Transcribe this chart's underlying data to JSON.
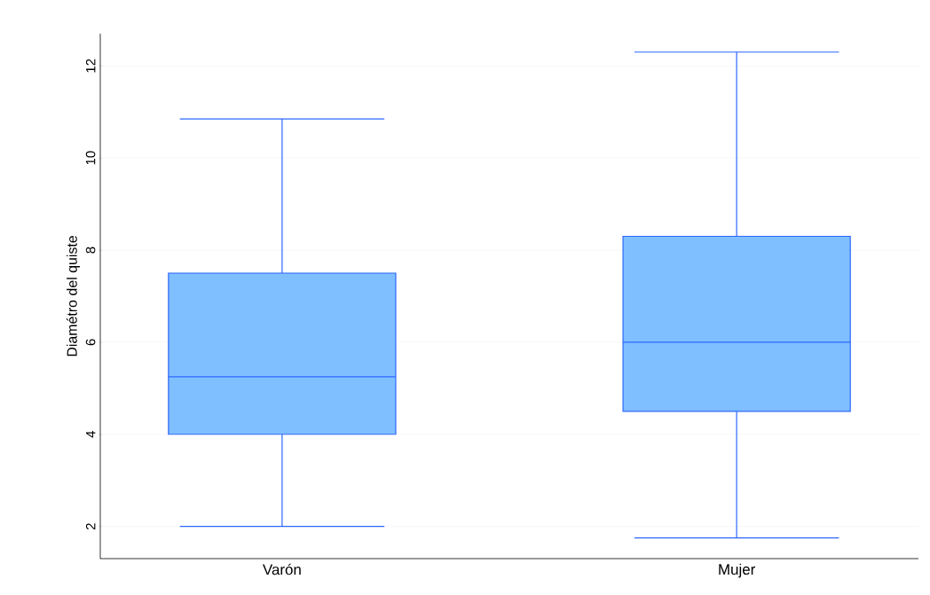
{
  "chart_data": {
    "type": "box",
    "ylabel": "Diamétro del quiste",
    "categories": [
      "Varón",
      "Mujer"
    ],
    "color": "#80bfff",
    "boxes": [
      {
        "low": 2.0,
        "q1": 4.0,
        "median": 5.25,
        "q3": 7.5,
        "high": 10.85
      },
      {
        "low": 1.75,
        "q1": 4.5,
        "median": 6.0,
        "q3": 8.3,
        "high": 12.3
      }
    ],
    "ylim": [
      1.3,
      12.7
    ],
    "yticks": [
      2,
      4,
      6,
      8,
      10,
      12
    ],
    "grid": "y"
  }
}
